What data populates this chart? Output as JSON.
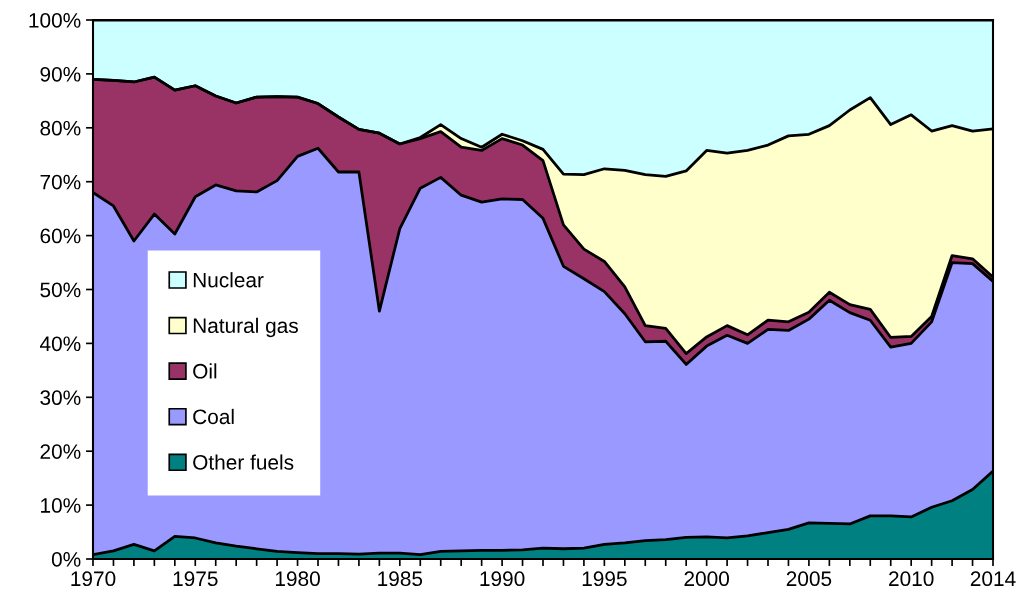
{
  "chart_data": {
    "type": "area",
    "stacked": true,
    "x": [
      1970,
      1971,
      1972,
      1973,
      1974,
      1975,
      1976,
      1977,
      1978,
      1979,
      1980,
      1981,
      1982,
      1983,
      1984,
      1985,
      1986,
      1987,
      1988,
      1989,
      1990,
      1991,
      1992,
      1993,
      1994,
      1995,
      1996,
      1997,
      1998,
      1999,
      2000,
      2001,
      2002,
      2003,
      2004,
      2005,
      2006,
      2007,
      2008,
      2009,
      2010,
      2011,
      2012,
      2013,
      2014
    ],
    "series": [
      {
        "name": "Other fuels",
        "color": "#008080",
        "values": [
          0.8,
          1.5,
          2.7,
          1.5,
          4.2,
          3.9,
          3.0,
          2.4,
          1.9,
          1.4,
          1.2,
          1.0,
          1.0,
          0.9,
          1.1,
          1.1,
          0.8,
          1.4,
          1.5,
          1.6,
          1.6,
          1.7,
          2.0,
          1.9,
          2.0,
          2.7,
          3.0,
          3.4,
          3.6,
          4.0,
          4.1,
          3.9,
          4.3,
          4.9,
          5.5,
          6.7,
          6.6,
          6.5,
          8.0,
          8.0,
          7.8,
          9.6,
          10.8,
          12.9,
          16.3
        ]
      },
      {
        "name": "Coal",
        "color": "#9999ff",
        "values": [
          67.2,
          64.0,
          56.3,
          62.5,
          56.1,
          63.3,
          66.4,
          65.9,
          66.2,
          68.8,
          73.5,
          75.2,
          70.8,
          70.9,
          44.9,
          60.2,
          68.0,
          69.4,
          66.0,
          64.6,
          65.2,
          65.0,
          61.2,
          52.4,
          50.0,
          46.9,
          42.5,
          36.9,
          36.8,
          32.1,
          35.4,
          37.6,
          35.7,
          37.7,
          36.9,
          37.8,
          41.4,
          39.2,
          36.3,
          31.3,
          32.2,
          34.4,
          44.2,
          41.9,
          35.2
        ]
      },
      {
        "name": "Oil",
        "color": "#993366",
        "values": [
          21.0,
          23.3,
          29.5,
          25.4,
          26.7,
          20.6,
          16.5,
          16.3,
          17.6,
          15.6,
          11.0,
          8.3,
          10.2,
          7.9,
          33.0,
          15.7,
          9.2,
          8.5,
          8.9,
          9.6,
          11.2,
          10.1,
          10.7,
          7.7,
          5.5,
          5.6,
          5.0,
          3.0,
          2.4,
          2.0,
          1.7,
          1.8,
          1.6,
          1.7,
          1.6,
          1.3,
          1.5,
          1.5,
          2.0,
          1.8,
          1.3,
          1.0,
          1.3,
          0.9,
          0.8
        ]
      },
      {
        "name": "Natural gas",
        "color": "#ffffcc",
        "values": [
          0,
          0,
          0,
          0,
          0,
          0,
          0,
          0,
          0,
          0,
          0,
          0,
          0,
          0,
          0,
          0,
          0.2,
          1.3,
          1.6,
          0.6,
          0.8,
          0.8,
          2.1,
          9.4,
          13.8,
          17.2,
          21.6,
          28.0,
          28.2,
          33.9,
          34.6,
          32.0,
          34.2,
          32.5,
          34.5,
          33.0,
          30.9,
          36.1,
          39.3,
          39.5,
          41.1,
          34.4,
          24.1,
          23.7,
          27.5
        ]
      },
      {
        "name": "Nuclear",
        "color": "#ccffff",
        "values": [
          11.0,
          11.2,
          11.5,
          10.6,
          13.0,
          12.2,
          14.1,
          15.4,
          14.3,
          14.2,
          14.3,
          15.5,
          18.0,
          20.3,
          21.0,
          23.0,
          21.8,
          19.4,
          22.0,
          23.6,
          21.2,
          22.4,
          24.0,
          28.6,
          28.7,
          27.6,
          27.9,
          28.7,
          29.0,
          28.0,
          24.2,
          24.7,
          24.2,
          23.2,
          21.5,
          21.2,
          19.6,
          16.7,
          14.4,
          19.4,
          17.6,
          20.6,
          19.6,
          20.6,
          20.2
        ]
      }
    ],
    "xlim": [
      1970,
      2014
    ],
    "xticks": [
      1970,
      {
        "value": 1971,
        "label": null
      },
      {
        "value": 1972,
        "label": null
      },
      {
        "value": 1973,
        "label": null
      },
      {
        "value": 1974,
        "label": null
      },
      1975,
      {
        "value": 1976,
        "label": null
      },
      {
        "value": 1977,
        "label": null
      },
      {
        "value": 1978,
        "label": null
      },
      {
        "value": 1979,
        "label": null
      },
      1980,
      {
        "value": 1981,
        "label": null
      },
      {
        "value": 1982,
        "label": null
      },
      {
        "value": 1983,
        "label": null
      },
      {
        "value": 1984,
        "label": null
      },
      1985,
      {
        "value": 1986,
        "label": null
      },
      {
        "value": 1987,
        "label": null
      },
      {
        "value": 1988,
        "label": null
      },
      {
        "value": 1989,
        "label": null
      },
      1990,
      {
        "value": 1991,
        "label": null
      },
      {
        "value": 1992,
        "label": null
      },
      {
        "value": 1993,
        "label": null
      },
      {
        "value": 1994,
        "label": null
      },
      1995,
      {
        "value": 1996,
        "label": null
      },
      {
        "value": 1997,
        "label": null
      },
      {
        "value": 1998,
        "label": null
      },
      {
        "value": 1999,
        "label": null
      },
      2000,
      {
        "value": 2001,
        "label": null
      },
      {
        "value": 2002,
        "label": null
      },
      {
        "value": 2003,
        "label": null
      },
      {
        "value": 2004,
        "label": null
      },
      2005,
      {
        "value": 2006,
        "label": null
      },
      {
        "value": 2007,
        "label": null
      },
      {
        "value": 2008,
        "label": null
      },
      {
        "value": 2009,
        "label": null
      },
      2010,
      {
        "value": 2011,
        "label": null
      },
      {
        "value": 2012,
        "label": null
      },
      {
        "value": 2013,
        "label": null
      },
      2014
    ],
    "ylim": [
      0,
      100
    ],
    "yticks": [
      {
        "value": 0,
        "label": "0%"
      },
      {
        "value": 10,
        "label": "10%"
      },
      {
        "value": 20,
        "label": "20%"
      },
      {
        "value": 30,
        "label": "30%"
      },
      {
        "value": 40,
        "label": "40%"
      },
      {
        "value": 50,
        "label": "50%"
      },
      {
        "value": 60,
        "label": "60%"
      },
      {
        "value": 70,
        "label": "70%"
      },
      {
        "value": 80,
        "label": "80%"
      },
      {
        "value": 90,
        "label": "90%"
      },
      {
        "value": 100,
        "label": "100%"
      }
    ],
    "grid": false,
    "legend": "left"
  }
}
